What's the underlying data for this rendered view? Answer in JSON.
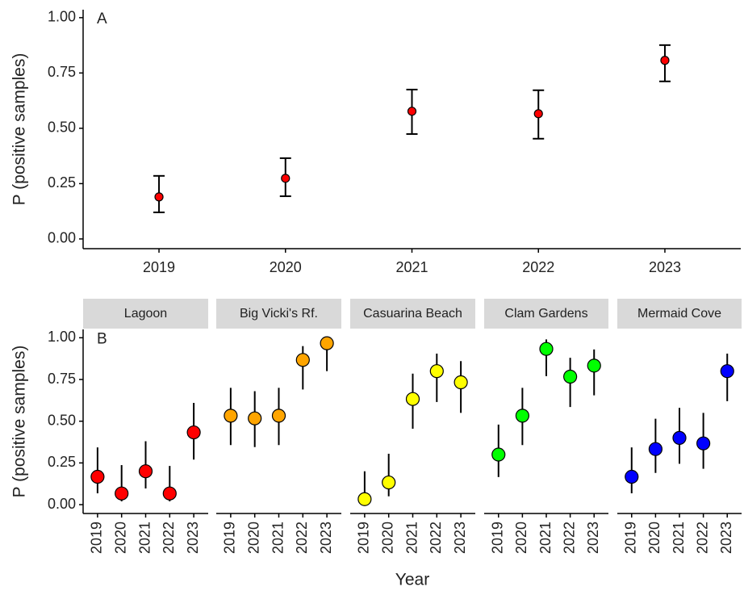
{
  "chart_data": [
    {
      "type": "pointrange",
      "panel_label": "A",
      "y_label": "P (positive samples)",
      "color": "#ff0000",
      "categories": [
        "2019",
        "2020",
        "2021",
        "2022",
        "2023"
      ],
      "values": [
        0.19,
        0.274,
        0.577,
        0.566,
        0.807
      ],
      "lower": [
        0.12,
        0.193,
        0.474,
        0.453,
        0.712
      ],
      "upper": [
        0.285,
        0.365,
        0.675,
        0.672,
        0.876
      ],
      "ylim": [
        -0.044,
        1.036
      ],
      "yticks": [
        {
          "value": 0,
          "label": "0.00"
        },
        {
          "value": 0.25,
          "label": "0.25"
        },
        {
          "value": 0.5,
          "label": "0.50"
        },
        {
          "value": 0.75,
          "label": "0.75"
        },
        {
          "value": 1,
          "label": "1.00"
        }
      ]
    },
    {
      "type": "pointrange",
      "panel_label": "B",
      "y_label": "P (positive samples)",
      "x_label": "Year",
      "categories": [
        "2019",
        "2020",
        "2021",
        "2022",
        "2023"
      ],
      "ylim": [
        -0.053,
        1.05
      ],
      "yticks": [
        {
          "value": 0,
          "label": "0.00"
        },
        {
          "value": 0.25,
          "label": "0.25"
        },
        {
          "value": 0.5,
          "label": "0.50"
        },
        {
          "value": 0.75,
          "label": "0.75"
        },
        {
          "value": 1,
          "label": "1.00"
        }
      ],
      "facets": [
        {
          "title": "Lagoon",
          "color": "#ff0000",
          "values": [
            0.167,
            0.067,
            0.2,
            0.067,
            0.433
          ],
          "lower": [
            0.068,
            0.02,
            0.097,
            0.02,
            0.27
          ],
          "upper": [
            0.343,
            0.237,
            0.38,
            0.232,
            0.61
          ]
        },
        {
          "title": "Big Vicki's Rf.",
          "color": "#ffa500",
          "values": [
            0.533,
            0.517,
            0.533,
            0.867,
            0.967
          ],
          "lower": [
            0.357,
            0.345,
            0.357,
            0.69,
            0.8
          ],
          "upper": [
            0.7,
            0.68,
            0.7,
            0.95,
            0.99
          ]
        },
        {
          "title": "Casuarina Beach",
          "color": "#ffff00",
          "values": [
            0.033,
            0.133,
            0.633,
            0.8,
            0.733
          ],
          "lower": [
            0.0,
            0.05,
            0.455,
            0.615,
            0.55
          ],
          "upper": [
            0.2,
            0.305,
            0.785,
            0.905,
            0.86
          ]
        },
        {
          "title": "Clam Gardens",
          "color": "#00ff00",
          "values": [
            0.3,
            0.533,
            0.933,
            0.767,
            0.833
          ],
          "lower": [
            0.165,
            0.357,
            0.77,
            0.585,
            0.655
          ],
          "upper": [
            0.48,
            0.7,
            0.99,
            0.88,
            0.93
          ]
        },
        {
          "title": "Mermaid Cove",
          "color": "#0000ff",
          "values": [
            0.167,
            0.333,
            0.4,
            0.367,
            0.8
          ],
          "lower": [
            0.068,
            0.19,
            0.245,
            0.215,
            0.62
          ],
          "upper": [
            0.343,
            0.515,
            0.58,
            0.55,
            0.905
          ]
        }
      ]
    }
  ]
}
